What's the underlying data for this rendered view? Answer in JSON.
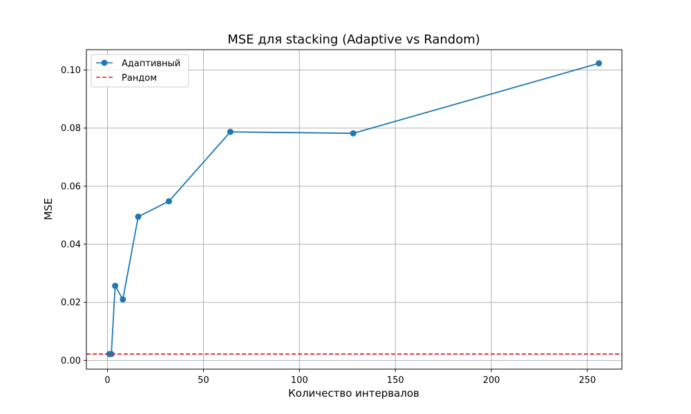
{
  "chart_data": {
    "type": "line",
    "title": "MSE для stacking (Adaptive vs Random)",
    "xlabel": "Количество интервалов",
    "ylabel": "MSE",
    "xlim": [
      -11,
      268
    ],
    "ylim": [
      -0.003,
      0.107
    ],
    "xticks": [
      0,
      50,
      100,
      150,
      200,
      250
    ],
    "yticks": [
      0.0,
      0.02,
      0.04,
      0.06,
      0.08,
      0.1
    ],
    "ytick_labels": [
      "0.00",
      "0.02",
      "0.04",
      "0.06",
      "0.08",
      "0.10"
    ],
    "grid": true,
    "legend_position": "top-left",
    "series": [
      {
        "name": "Адаптивный",
        "style": "solid-marker",
        "color": "#1f77b4",
        "x": [
          1,
          2,
          4,
          8,
          16,
          32,
          64,
          128,
          256
        ],
        "y": [
          0.0022,
          0.0022,
          0.0257,
          0.021,
          0.0495,
          0.0548,
          0.0787,
          0.0782,
          0.1023
        ]
      },
      {
        "name": "Рандом",
        "style": "dashed-hline",
        "color": "#d62728",
        "y": 0.0022
      }
    ]
  }
}
